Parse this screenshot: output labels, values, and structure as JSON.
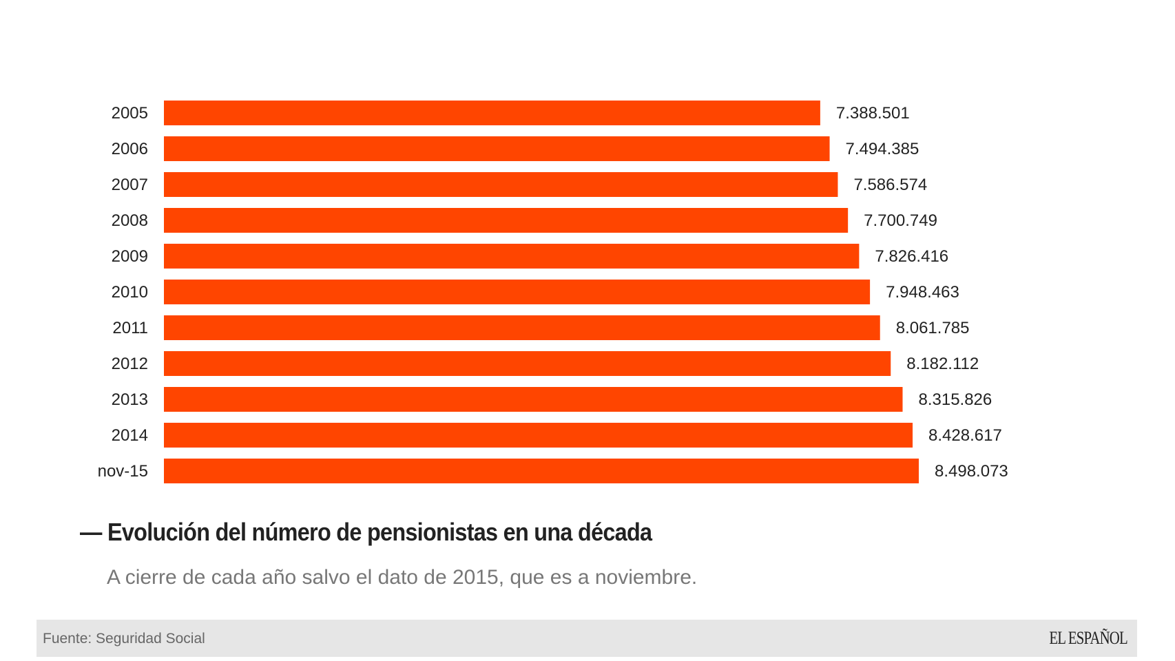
{
  "chart_data": {
    "type": "bar",
    "orientation": "horizontal",
    "categories": [
      "2005",
      "2006",
      "2007",
      "2008",
      "2009",
      "2010",
      "2011",
      "2012",
      "2013",
      "2014",
      "nov-15"
    ],
    "values": [
      7388501,
      7494385,
      7586574,
      7700749,
      7826416,
      7948463,
      8061785,
      8182112,
      8315826,
      8428617,
      8498073
    ],
    "value_labels": [
      "7.388.501",
      "7.494.385",
      "7.586.574",
      "7.700.749",
      "7.826.416",
      "7.948.463",
      "8.061.785",
      "8.182.112",
      "8.315.826",
      "8.428.617",
      "8.498.073"
    ],
    "title": "Evolución del número de pensionistas en una década",
    "subtitle": "A cierre de cada año salvo el dato de 2015, que es a noviembre.",
    "xlim": [
      0,
      8498073
    ],
    "grid": false,
    "bar_color": "#ff4500"
  },
  "title_dash": "—",
  "footer": {
    "source": "Fuente: Seguridad Social",
    "logo": "EL ESPAÑOL"
  }
}
